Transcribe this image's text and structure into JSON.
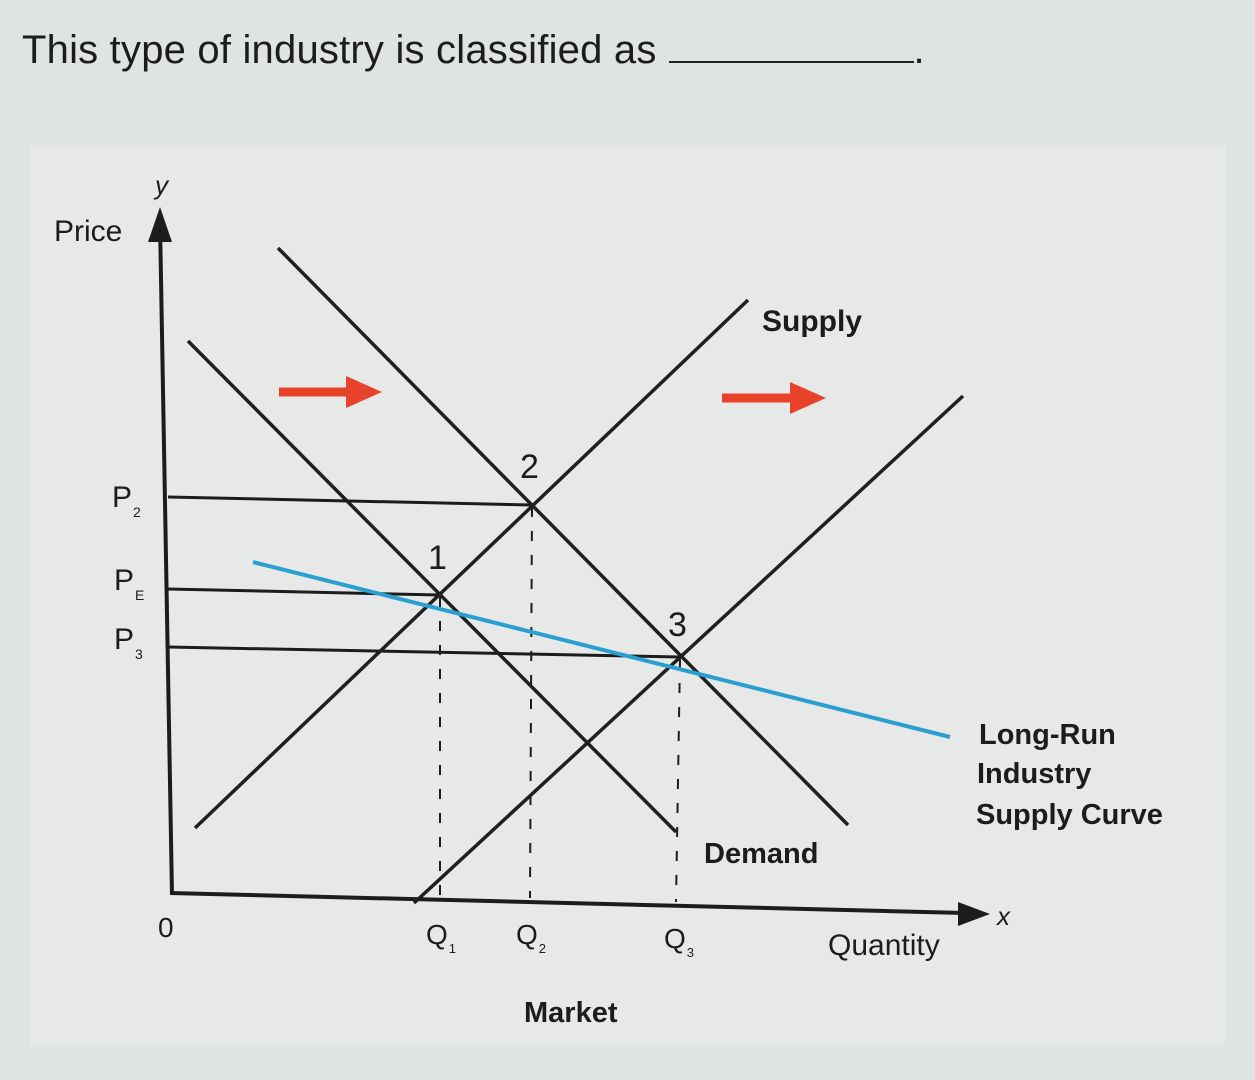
{
  "question": {
    "prefix": "This type of industry is classified as",
    "suffix": "."
  },
  "chart_data": {
    "type": "line",
    "xlabel": "Quantity",
    "ylabel": "Price",
    "x_axis_letter": "x",
    "y_axis_letter": "y",
    "origin_label": "0",
    "caption": "Market",
    "price_levels": [
      {
        "main": "P",
        "sub": "2",
        "key": "P2",
        "value": 0.67
      },
      {
        "main": "P",
        "sub": "E",
        "key": "PE",
        "value": 0.53
      },
      {
        "main": "P",
        "sub": "3",
        "key": "P3",
        "value": 0.44
      }
    ],
    "quantity_levels": [
      {
        "main": "Q",
        "sub": "1",
        "key": "Q1",
        "value": 0.33
      },
      {
        "main": "Q",
        "sub": "2",
        "key": "Q2",
        "value": 0.45
      },
      {
        "main": "Q",
        "sub": "3",
        "key": "Q3",
        "value": 0.63
      }
    ],
    "points": [
      {
        "label": "1",
        "q": "Q1",
        "p": "PE"
      },
      {
        "label": "2",
        "q": "Q2",
        "p": "P2"
      },
      {
        "label": "3",
        "q": "Q3",
        "p": "P3"
      }
    ],
    "curves": {
      "supply_label": "Supply",
      "demand_label": "Demand",
      "lr_supply_label": [
        "Long-Run",
        "Industry",
        "Supply Curve"
      ]
    },
    "colors": {
      "curves": "#1f1f1f",
      "long_run_supply": "#2a9fd0",
      "shift_arrows": "#e8432a"
    }
  }
}
